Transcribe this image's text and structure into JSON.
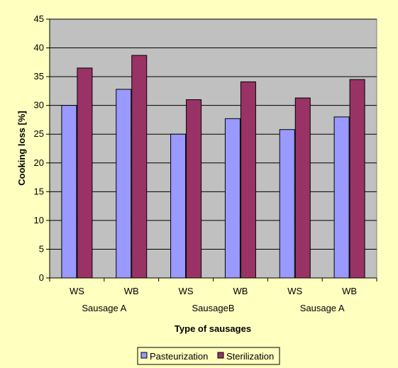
{
  "chart_data": {
    "type": "bar",
    "categories": [
      "WS",
      "WB",
      "WS",
      "WB",
      "WS",
      "WB"
    ],
    "groups": [
      {
        "label": "Sausage A",
        "categories": [
          "WS",
          "WB"
        ]
      },
      {
        "label": "SausageB",
        "categories": [
          "WS",
          "WB"
        ]
      },
      {
        "label": "Sausage A",
        "categories": [
          "WS",
          "WB"
        ]
      }
    ],
    "series": [
      {
        "name": "Pasteurization",
        "color": "#9999ff",
        "values": [
          30.0,
          32.8,
          25.0,
          27.7,
          25.8,
          28.0
        ]
      },
      {
        "name": "Sterilization",
        "color": "#993366",
        "values": [
          36.5,
          38.7,
          31.0,
          34.1,
          31.3,
          34.5
        ]
      }
    ],
    "title": "",
    "xlabel": "Type of sausages",
    "ylabel": "Cooking loss [%]",
    "ylim": [
      0,
      45
    ],
    "yticks": [
      0,
      5,
      10,
      15,
      20,
      25,
      30,
      35,
      40,
      45
    ],
    "grid": true,
    "legend_position": "bottom",
    "plot_background": "#c0c0c0",
    "page_background": "#ffffc0"
  }
}
